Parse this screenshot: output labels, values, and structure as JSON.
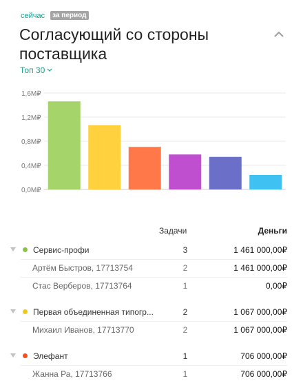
{
  "header": {
    "tab_now": "сейчас",
    "tab_period": "за период",
    "title": "Согласующий со стороны поставщика",
    "top_select": "Топ 30"
  },
  "chart_data": {
    "type": "bar",
    "categories": [
      "Сервис-профи",
      "Первая объединенная типография",
      "Элефант",
      "",
      "",
      ""
    ],
    "values": [
      1.461,
      1.067,
      0.706,
      0.58,
      0.54,
      0.24
    ],
    "colors": [
      "#a5d46a",
      "#ffd13e",
      "#ff7849",
      "#c04fcf",
      "#6b6fc8",
      "#3fc1f2"
    ],
    "yticks": [
      "0,0₽",
      "0,4₽",
      "0,8₽",
      "1,2₽",
      "1,6₽"
    ],
    "ytick_values": [
      0,
      0.4,
      0.8,
      1.2,
      1.6
    ],
    "unit": "M",
    "ylim": [
      0,
      1.6
    ],
    "grid": true,
    "xlabel": "",
    "ylabel": ""
  },
  "table": {
    "headers": {
      "tasks": "Задачи",
      "money": "Деньги"
    },
    "groups": [
      {
        "name": "Сервис-профи",
        "color": "#8bc34a",
        "tasks": "3",
        "money": "1 461 000,00₽",
        "rows": [
          {
            "name": "Артём Быстров, 17713754",
            "tasks": "2",
            "money": "1 461 000,00₽"
          },
          {
            "name": "Стас Верберов, 17713764",
            "tasks": "1",
            "money": "0,00₽"
          }
        ]
      },
      {
        "name": "Первая объединенная типогр...",
        "color": "#f5c518",
        "tasks": "2",
        "money": "1 067 000,00₽",
        "rows": [
          {
            "name": "Михаил Иванов, 17713770",
            "tasks": "2",
            "money": "1 067 000,00₽"
          }
        ]
      },
      {
        "name": "Элефант",
        "color": "#f4511e",
        "tasks": "1",
        "money": "706 000,00₽",
        "rows": [
          {
            "name": "Жанна Ра, 17713766",
            "tasks": "1",
            "money": "706 000,00₽"
          }
        ]
      }
    ]
  }
}
